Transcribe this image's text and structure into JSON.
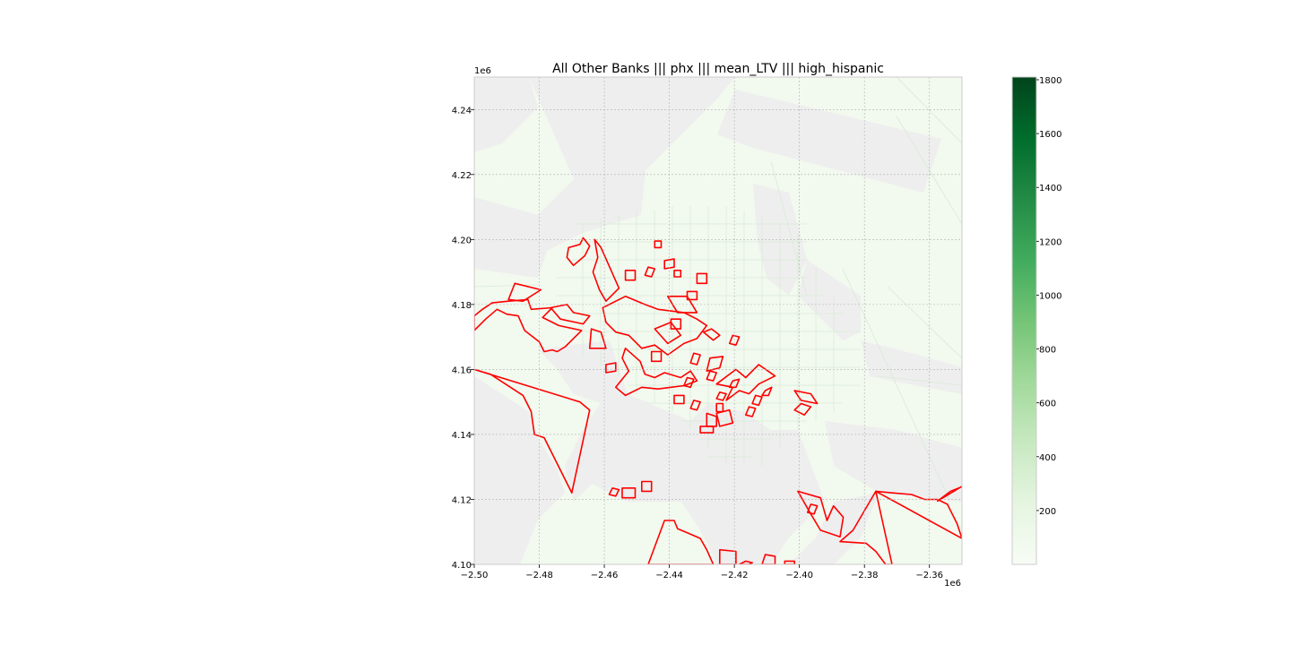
{
  "title": "All Other Banks ||| phx ||| mean_LTV ||| high_hispanic",
  "chart_data": {
    "type": "map",
    "x_axis": {
      "range": [
        -2.5,
        -2.35
      ],
      "ticks": [
        -2.5,
        -2.48,
        -2.46,
        -2.44,
        -2.42,
        -2.4,
        -2.38,
        -2.36
      ],
      "tick_labels": [
        "−2.50",
        "−2.48",
        "−2.46",
        "−2.44",
        "−2.42",
        "−2.40",
        "−2.38",
        "−2.36"
      ],
      "offset_label": "1e6"
    },
    "y_axis": {
      "range": [
        4.1,
        4.25
      ],
      "ticks": [
        4.1,
        4.12,
        4.14,
        4.16,
        4.18,
        4.2,
        4.22,
        4.24
      ],
      "tick_labels": [
        "4.10",
        "4.12",
        "4.14",
        "4.16",
        "4.18",
        "4.20",
        "4.22",
        "4.24"
      ],
      "offset_label": "1e6"
    },
    "grid": true,
    "colorbar": {
      "colormap": "Greens",
      "range": [
        0,
        1810
      ],
      "ticks": [
        200,
        400,
        600,
        800,
        1000,
        1200,
        1400,
        1600,
        1800
      ],
      "tick_labels": [
        "200",
        "400",
        "600",
        "800",
        "1000",
        "1200",
        "1400",
        "1600",
        "1800"
      ],
      "low_color": "#f7fcf5",
      "high_color": "#00441b"
    },
    "layers": {
      "missing_fill": "#eeeeee",
      "value_fill": "#f2f9ef",
      "tract_edge": "#d8ebd6",
      "highlight_edge": "#ff0000"
    },
    "highlight_polygons": [
      [
        [
          -2.5,
          4.16
        ],
        [
          -2.495,
          4.1585
        ],
        [
          -2.485,
          4.152
        ],
        [
          -2.4825,
          4.147
        ],
        [
          -2.4815,
          4.14
        ],
        [
          -2.4785,
          4.139
        ],
        [
          -2.47,
          4.122
        ],
        [
          -2.4645,
          4.1475
        ],
        [
          -2.4675,
          4.15
        ]
      ],
      [
        [
          -2.5,
          4.172
        ],
        [
          -2.4965,
          4.1755
        ],
        [
          -2.493,
          4.1785
        ],
        [
          -2.49,
          4.177
        ],
        [
          -2.4865,
          4.1765
        ],
        [
          -2.4845,
          4.172
        ],
        [
          -2.48,
          4.1685
        ],
        [
          -2.4785,
          4.1655
        ],
        [
          -2.476,
          4.166
        ],
        [
          -2.4745,
          4.1655
        ],
        [
          -2.472,
          4.167
        ],
        [
          -2.467,
          4.172
        ],
        [
          -2.474,
          4.1735
        ],
        [
          -2.479,
          4.176
        ],
        [
          -2.476,
          4.179
        ],
        [
          -2.4825,
          4.1785
        ],
        [
          -2.4835,
          4.1815
        ],
        [
          -2.4895,
          4.181
        ],
        [
          -2.4945,
          4.1805
        ],
        [
          -2.4975,
          4.1785
        ],
        [
          -2.5,
          4.1765
        ]
      ],
      [
        [
          -2.4895,
          4.1815
        ],
        [
          -2.4875,
          4.1865
        ],
        [
          -2.4795,
          4.1845
        ],
        [
          -2.485,
          4.181
        ]
      ],
      [
        [
          -2.4665,
          4.174
        ],
        [
          -2.4645,
          4.1765
        ],
        [
          -2.4695,
          4.1775
        ],
        [
          -2.4715,
          4.18
        ],
        [
          -2.4765,
          4.179
        ],
        [
          -2.4735,
          4.1755
        ]
      ],
      [
        [
          -2.4665,
          4.2005
        ],
        [
          -2.4675,
          4.1985
        ],
        [
          -2.471,
          4.1975
        ],
        [
          -2.4715,
          4.1945
        ],
        [
          -2.4695,
          4.192
        ],
        [
          -2.466,
          4.195
        ],
        [
          -2.4645,
          4.198
        ]
      ],
      [
        [
          -2.463,
          4.2
        ],
        [
          -2.461,
          4.1975
        ],
        [
          -2.4555,
          4.185
        ],
        [
          -2.4595,
          4.181
        ],
        [
          -2.4615,
          4.1845
        ],
        [
          -2.4635,
          4.19
        ],
        [
          -2.462,
          4.1945
        ]
      ],
      [
        [
          -2.4605,
          4.179
        ],
        [
          -2.4535,
          4.1825
        ],
        [
          -2.4475,
          4.18
        ],
        [
          -2.4435,
          4.1785
        ],
        [
          -2.4355,
          4.1775
        ],
        [
          -2.4315,
          4.1755
        ],
        [
          -2.4285,
          4.1735
        ],
        [
          -2.4315,
          4.1695
        ],
        [
          -2.4355,
          4.168
        ],
        [
          -2.4405,
          4.1645
        ],
        [
          -2.4445,
          4.1675
        ],
        [
          -2.4485,
          4.1665
        ],
        [
          -2.4525,
          4.1705
        ],
        [
          -2.4565,
          4.1715
        ],
        [
          -2.4595,
          4.1745
        ]
      ],
      [
        [
          -2.4595,
          4.1665
        ],
        [
          -2.461,
          4.1715
        ],
        [
          -2.464,
          4.1725
        ],
        [
          -2.4645,
          4.1665
        ]
      ],
      [
        [
          -2.4535,
          4.1665
        ],
        [
          -2.449,
          4.1625
        ],
        [
          -2.4475,
          4.1585
        ],
        [
          -2.4445,
          4.1575
        ],
        [
          -2.4415,
          4.159
        ],
        [
          -2.4365,
          4.1575
        ],
        [
          -2.4335,
          4.1595
        ],
        [
          -2.4315,
          4.1565
        ],
        [
          -2.4355,
          4.155
        ],
        [
          -2.4395,
          4.1545
        ],
        [
          -2.4435,
          4.154
        ],
        [
          -2.4485,
          4.1545
        ],
        [
          -2.4535,
          4.152
        ],
        [
          -2.4565,
          4.1545
        ],
        [
          -2.4525,
          4.1595
        ],
        [
          -2.4545,
          4.1635
        ]
      ],
      [
        [
          -2.4445,
          4.1725
        ],
        [
          -2.4405,
          4.168
        ],
        [
          -2.4365,
          4.1705
        ],
        [
          -2.4395,
          4.1745
        ]
      ],
      [
        [
          -2.4405,
          4.1825
        ],
        [
          -2.4375,
          4.1775
        ],
        [
          -2.4315,
          4.1775
        ],
        [
          -2.4345,
          4.1825
        ]
      ],
      [
        [
          -2.4295,
          4.1715
        ],
        [
          -2.4265,
          4.169
        ],
        [
          -2.4245,
          4.1705
        ],
        [
          -2.427,
          4.1725
        ]
      ],
      [
        [
          -2.4255,
          4.1555
        ],
        [
          -2.4195,
          4.16
        ],
        [
          -2.4165,
          4.1575
        ],
        [
          -2.4125,
          4.1615
        ],
        [
          -2.4075,
          4.158
        ],
        [
          -2.4125,
          4.1555
        ],
        [
          -2.4155,
          4.1525
        ],
        [
          -2.4185,
          4.1535
        ],
        [
          -2.4225,
          4.1505
        ],
        [
          -2.4205,
          4.1545
        ]
      ],
      [
        [
          -2.4105,
          4.1535
        ],
        [
          -2.4085,
          4.1545
        ],
        [
          -2.4095,
          4.152
        ],
        [
          -2.4115,
          4.152
        ]
      ],
      [
        [
          -2.4015,
          4.1535
        ],
        [
          -2.3965,
          4.1525
        ],
        [
          -2.3945,
          4.1495
        ],
        [
          -2.3995,
          4.1505
        ]
      ],
      [
        [
          -2.3995,
          4.1495
        ],
        [
          -2.3965,
          4.1485
        ],
        [
          -2.3985,
          4.146
        ],
        [
          -2.4015,
          4.1475
        ]
      ],
      [
        [
          -2.4255,
          4.1465
        ],
        [
          -2.4215,
          4.1475
        ],
        [
          -2.4205,
          4.1435
        ],
        [
          -2.4245,
          4.1425
        ]
      ],
      [
        [
          -2.4245,
          4.153
        ],
        [
          -2.4225,
          4.1525
        ],
        [
          -2.4235,
          4.1505
        ],
        [
          -2.4255,
          4.151
        ]
      ],
      [
        [
          -2.4205,
          4.1565
        ],
        [
          -2.4185,
          4.157
        ],
        [
          -2.4195,
          4.1545
        ],
        [
          -2.4215,
          4.1545
        ]
      ],
      [
        [
          -2.4135,
          4.152
        ],
        [
          -2.4115,
          4.1515
        ],
        [
          -2.4125,
          4.149
        ],
        [
          -2.4145,
          4.1495
        ]
      ],
      [
        [
          -2.4385,
          4.152
        ],
        [
          -2.4355,
          4.152
        ],
        [
          -2.4355,
          4.1495
        ],
        [
          -2.4385,
          4.1495
        ]
      ],
      [
        [
          -2.4345,
          4.1575
        ],
        [
          -2.4325,
          4.157
        ],
        [
          -2.4335,
          4.1545
        ],
        [
          -2.4355,
          4.155
        ]
      ],
      [
        [
          -2.4325,
          4.165
        ],
        [
          -2.4305,
          4.1645
        ],
        [
          -2.4315,
          4.1615
        ],
        [
          -2.4335,
          4.162
        ]
      ],
      [
        [
          -2.4275,
          4.1635
        ],
        [
          -2.4235,
          4.164
        ],
        [
          -2.4245,
          4.1605
        ],
        [
          -2.4285,
          4.1595
        ]
      ],
      [
        [
          -2.4275,
          4.1595
        ],
        [
          -2.4255,
          4.159
        ],
        [
          -2.4265,
          4.1565
        ],
        [
          -2.4285,
          4.157
        ]
      ],
      [
        [
          -2.4255,
          4.1495
        ],
        [
          -2.4235,
          4.1495
        ],
        [
          -2.4235,
          4.147
        ],
        [
          -2.4255,
          4.147
        ]
      ],
      [
        [
          -2.4285,
          4.1465
        ],
        [
          -2.4255,
          4.1455
        ],
        [
          -2.4255,
          4.1425
        ],
        [
          -2.4285,
          4.1425
        ]
      ],
      [
        [
          -2.4305,
          4.1425
        ],
        [
          -2.4265,
          4.1425
        ],
        [
          -2.4265,
          4.1405
        ],
        [
          -2.4305,
          4.1405
        ]
      ],
      [
        [
          -2.4325,
          4.1505
        ],
        [
          -2.4305,
          4.15
        ],
        [
          -2.4315,
          4.1475
        ],
        [
          -2.4335,
          4.148
        ]
      ],
      [
        [
          -2.4155,
          4.1485
        ],
        [
          -2.4135,
          4.148
        ],
        [
          -2.4145,
          4.1455
        ],
        [
          -2.4165,
          4.146
        ]
      ],
      [
        [
          -2.4445,
          4.1995
        ],
        [
          -2.4425,
          4.1995
        ],
        [
          -2.4425,
          4.1975
        ],
        [
          -2.4445,
          4.1975
        ]
      ],
      [
        [
          -2.4415,
          4.1935
        ],
        [
          -2.4385,
          4.194
        ],
        [
          -2.4385,
          4.1915
        ],
        [
          -2.4415,
          4.191
        ]
      ],
      [
        [
          -2.4385,
          4.1905
        ],
        [
          -2.4365,
          4.1905
        ],
        [
          -2.4365,
          4.1885
        ],
        [
          -2.4385,
          4.1885
        ]
      ],
      [
        [
          -2.4465,
          4.1915
        ],
        [
          -2.4445,
          4.191
        ],
        [
          -2.4455,
          4.1885
        ],
        [
          -2.4475,
          4.189
        ]
      ],
      [
        [
          -2.4535,
          4.1905
        ],
        [
          -2.4505,
          4.1905
        ],
        [
          -2.4505,
          4.1875
        ],
        [
          -2.4535,
          4.1875
        ]
      ],
      [
        [
          -2.4315,
          4.1895
        ],
        [
          -2.4285,
          4.1895
        ],
        [
          -2.4285,
          4.1865
        ],
        [
          -2.4315,
          4.1865
        ]
      ],
      [
        [
          -2.4345,
          4.184
        ],
        [
          -2.4315,
          4.184
        ],
        [
          -2.4315,
          4.1815
        ],
        [
          -2.4345,
          4.1815
        ]
      ],
      [
        [
          -2.4395,
          4.1755
        ],
        [
          -2.4365,
          4.1755
        ],
        [
          -2.4365,
          4.1725
        ],
        [
          -2.4395,
          4.1725
        ]
      ],
      [
        [
          -2.4455,
          4.1655
        ],
        [
          -2.4425,
          4.1655
        ],
        [
          -2.4425,
          4.1625
        ],
        [
          -2.4455,
          4.1625
        ]
      ],
      [
        [
          -2.4205,
          4.1705
        ],
        [
          -2.4185,
          4.17
        ],
        [
          -2.4195,
          4.1675
        ],
        [
          -2.4215,
          4.168
        ]
      ],
      [
        [
          -2.4595,
          4.1615
        ],
        [
          -2.4565,
          4.162
        ],
        [
          -2.4565,
          4.1595
        ],
        [
          -2.4595,
          4.159
        ]
      ],
      [
        [
          -2.4485,
          4.1255
        ],
        [
          -2.4455,
          4.1255
        ],
        [
          -2.4455,
          4.1225
        ],
        [
          -2.4485,
          4.1225
        ]
      ],
      [
        [
          -2.4545,
          4.1235
        ],
        [
          -2.4505,
          4.1235
        ],
        [
          -2.4505,
          4.1205
        ],
        [
          -2.4545,
          4.1205
        ]
      ],
      [
        [
          -2.4575,
          4.1235
        ],
        [
          -2.4555,
          4.123
        ],
        [
          -2.4565,
          4.121
        ],
        [
          -2.4585,
          4.1215
        ]
      ],
      [
        [
          -2.4165,
          4.101
        ],
        [
          -2.4145,
          4.1005
        ],
        [
          -2.4155,
          4.1
        ],
        [
          -2.4185,
          4.1
        ]
      ],
      [
        [
          -2.4105,
          4.103
        ],
        [
          -2.4075,
          4.1025
        ],
        [
          -2.4075,
          4.1
        ],
        [
          -2.4115,
          4.1
        ]
      ],
      [
        [
          -2.4245,
          4.1045
        ],
        [
          -2.4195,
          4.104
        ],
        [
          -2.4195,
          4.1
        ],
        [
          -2.4245,
          4.1
        ]
      ],
      [
        [
          -2.4045,
          4.101
        ],
        [
          -2.4015,
          4.101
        ],
        [
          -2.4015,
          4.1
        ],
        [
          -2.4045,
          4.1
        ]
      ],
      [
        [
          -2.4465,
          4.1
        ],
        [
          -2.4415,
          4.1135
        ],
        [
          -2.4385,
          4.1135
        ],
        [
          -2.4375,
          4.111
        ],
        [
          -2.4305,
          4.108
        ],
        [
          -2.4285,
          4.1045
        ],
        [
          -2.4265,
          4.1
        ],
        [
          -2.4345,
          4.1
        ]
      ],
      [
        [
          -2.4005,
          4.1225
        ],
        [
          -2.3935,
          4.1205
        ],
        [
          -2.3915,
          4.1135
        ],
        [
          -2.3895,
          4.118
        ],
        [
          -2.3865,
          4.1145
        ],
        [
          -2.3875,
          4.1085
        ],
        [
          -2.3935,
          4.1105
        ],
        [
          -2.3965,
          4.1155
        ]
      ],
      [
        [
          -2.3965,
          4.1185
        ],
        [
          -2.3945,
          4.118
        ],
        [
          -2.3955,
          4.1155
        ],
        [
          -2.3975,
          4.116
        ]
      ],
      [
        [
          -2.3765,
          4.1225
        ],
        [
          -2.3835,
          4.1105
        ],
        [
          -2.3875,
          4.107
        ],
        [
          -2.3795,
          4.1065
        ],
        [
          -2.3765,
          4.104
        ],
        [
          -2.3735,
          4.1
        ],
        [
          -2.3715,
          4.1
        ]
      ],
      [
        [
          -2.3765,
          4.1225
        ],
        [
          -2.3715,
          4.122
        ],
        [
          -2.3655,
          4.1215
        ],
        [
          -2.3615,
          4.12
        ],
        [
          -2.3575,
          4.12
        ],
        [
          -2.3545,
          4.1185
        ],
        [
          -2.3515,
          4.1125
        ],
        [
          -2.35,
          4.108
        ]
      ],
      [
        [
          -2.3575,
          4.1195
        ],
        [
          -2.3535,
          4.1225
        ],
        [
          -2.351,
          4.1235
        ],
        [
          -2.35,
          4.124
        ]
      ]
    ]
  }
}
